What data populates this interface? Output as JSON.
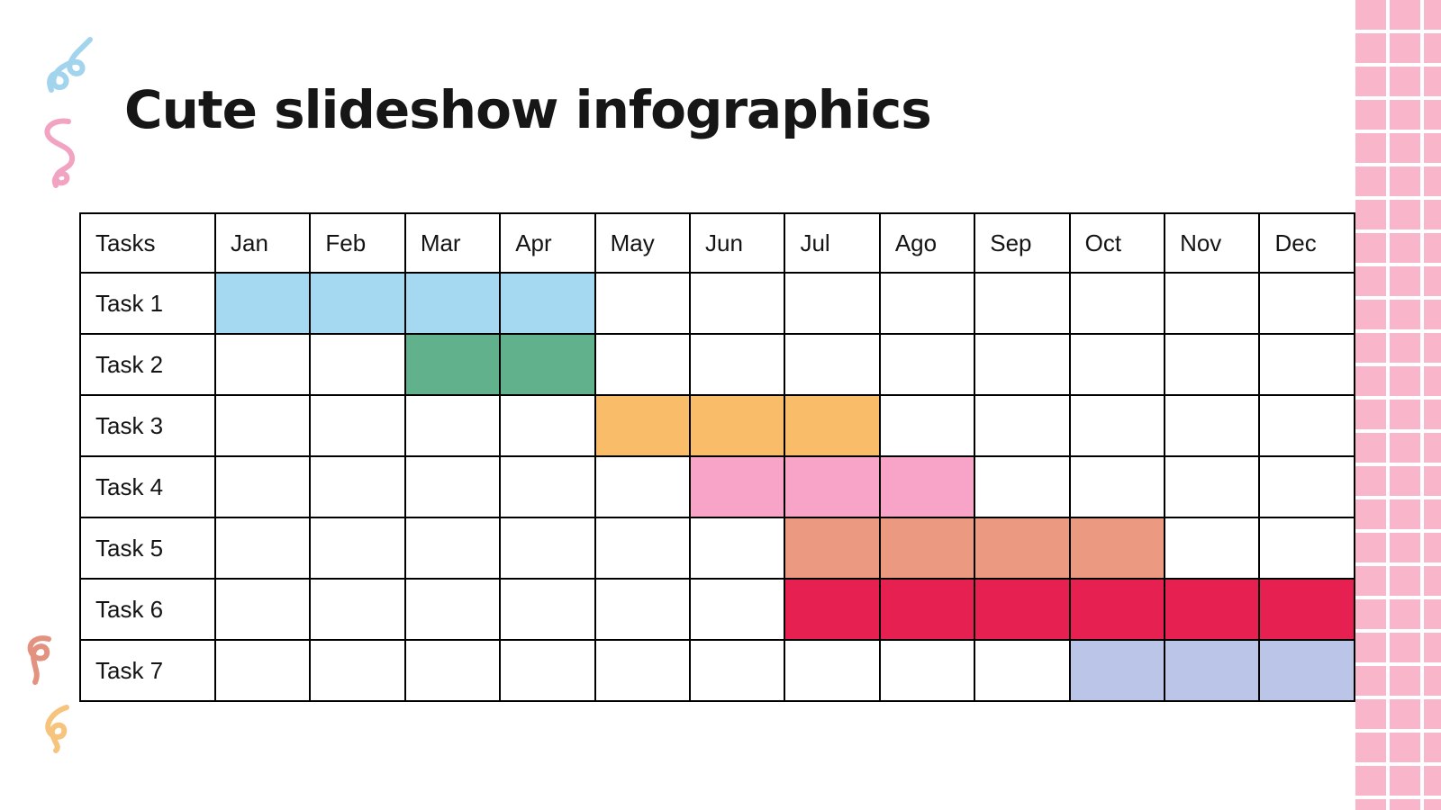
{
  "slide": {
    "title": "Cute slideshow infographics",
    "background": "#ffffff",
    "title_color": "#161616"
  },
  "decorations": {
    "strip": {
      "color": "#f9b6cb",
      "grid_line_color": "#ffffff"
    },
    "squiggles": [
      {
        "name": "blue-squiggle",
        "color": "#a3d4ee"
      },
      {
        "name": "pink-squiggle",
        "color": "#f3a3c2"
      },
      {
        "name": "salmon-squiggle",
        "color": "#e2927e"
      },
      {
        "name": "orange-squiggle",
        "color": "#f6c47d"
      }
    ]
  },
  "chart_data": {
    "type": "table",
    "subtype": "gantt",
    "title": "Cute slideshow infographics",
    "columns": [
      "Tasks",
      "Jan",
      "Feb",
      "Mar",
      "Apr",
      "May",
      "Jun",
      "Jul",
      "Ago",
      "Sep",
      "Oct",
      "Nov",
      "Dec"
    ],
    "rows": [
      {
        "label": "Task 1",
        "start_month": "Jan",
        "end_month": "Apr",
        "start_index": 1,
        "end_index": 4,
        "color": "#a4d9f1"
      },
      {
        "label": "Task 2",
        "start_month": "Mar",
        "end_month": "Apr",
        "start_index": 3,
        "end_index": 4,
        "color": "#60b18c"
      },
      {
        "label": "Task 3",
        "start_month": "May",
        "end_month": "Jul",
        "start_index": 5,
        "end_index": 7,
        "color": "#f9bd6a"
      },
      {
        "label": "Task 4",
        "start_month": "Jun",
        "end_month": "Ago",
        "start_index": 6,
        "end_index": 8,
        "color": "#f8a3c8"
      },
      {
        "label": "Task 5",
        "start_month": "Jul",
        "end_month": "Oct",
        "start_index": 7,
        "end_index": 10,
        "color": "#eb9a81"
      },
      {
        "label": "Task 6",
        "start_month": "Jul",
        "end_month": "Dec",
        "start_index": 7,
        "end_index": 12,
        "color": "#e62152"
      },
      {
        "label": "Task 7",
        "start_month": "Oct",
        "end_month": "Dec",
        "start_index": 10,
        "end_index": 12,
        "color": "#bbc5e8"
      }
    ],
    "grid": true,
    "border_color": "#000000",
    "legend": null
  }
}
